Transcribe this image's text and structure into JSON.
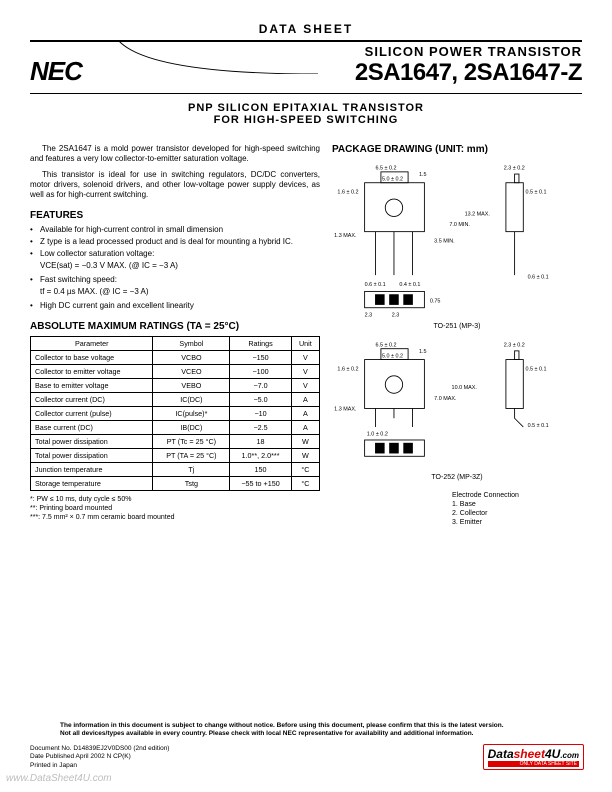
{
  "banner": "DATA  SHEET",
  "logo": "NEC",
  "title_line1": "SILICON  POWER  TRANSISTOR",
  "title_parts": "2SA1647, 2SA1647-Z",
  "subtitle1": "PNP  SILICON  EPITAXIAL  TRANSISTOR",
  "subtitle2": "FOR  HIGH-SPEED  SWITCHING",
  "intro_p1": "The 2SA1647 is a mold power transistor developed for high-speed switching and features a very low collector-to-emitter saturation voltage.",
  "intro_p2": "This transistor is ideal for use in switching regulators, DC/DC converters, motor drivers, solenoid drivers, and other low-voltage power supply devices, as well as for high-current switching.",
  "features_h": "FEATURES",
  "features": {
    "f1": "Available for high-current control in small dimension",
    "f2": "Z type is a lead processed product and is deal for mounting a hybrid IC.",
    "f3": "Low collector saturation voltage:",
    "f3_sub": "VCE(sat) = −0.3 V MAX. (@ IC = −3 A)",
    "f4": "Fast switching speed:",
    "f4_sub": "tf = 0.4 µs MAX. (@ IC = −3 A)",
    "f5": "High DC current gain and excellent linearity"
  },
  "ratings_h": "ABSOLUTE  MAXIMUM  RATINGS  (TA  =  25°C)",
  "tbl": {
    "headers": [
      "Parameter",
      "Symbol",
      "Ratings",
      "Unit"
    ],
    "rows": [
      [
        "Collector to base voltage",
        "VCBO",
        "−150",
        "V"
      ],
      [
        "Collector to emitter voltage",
        "VCEO",
        "−100",
        "V"
      ],
      [
        "Base to emitter voltage",
        "VEBO",
        "−7.0",
        "V"
      ],
      [
        "Collector current (DC)",
        "IC(DC)",
        "−5.0",
        "A"
      ],
      [
        "Collector current (pulse)",
        "IC(pulse)*",
        "−10",
        "A"
      ],
      [
        "Base current (DC)",
        "IB(DC)",
        "−2.5",
        "A"
      ],
      [
        "Total power dissipation",
        "PT (Tc = 25 °C)",
        "18",
        "W"
      ],
      [
        "Total power dissipation",
        "PT (TA = 25 °C)",
        "1.0**, 2.0***",
        "W"
      ],
      [
        "Junction temperature",
        "Tj",
        "150",
        "°C"
      ],
      [
        "Storage temperature",
        "Tstg",
        "−55 to +150",
        "°C"
      ]
    ]
  },
  "notes": {
    "n1": "*:    PW ≤ 10 ms, duty cycle ≤ 50%",
    "n2": "**:   Printing board mounted",
    "n3": "***: 7.5 mm² × 0.7 mm ceramic board mounted"
  },
  "pkg_h": "PACKAGE  DRAWING  (UNIT: mm)",
  "pkg_labels": {
    "p1": "TO-251  (MP-3)",
    "p2": "TO-252  (MP-3Z)"
  },
  "pkg_dims": {
    "d1": "6.5 ± 0.2",
    "d2": "5.0 ± 0.2",
    "d3": "1.5",
    "d4": "2.3 ± 0.2",
    "d5": "1.6 ± 0.2",
    "d6": "1.3 MAX.",
    "d7": "0.5 ± 0.1",
    "d8": "3.5 MIN.",
    "d9": "7.0 MIN.",
    "d10": "13.2 MAX.",
    "d11": "0.6 ± 0.1",
    "d12": "0.4 ± 0.1",
    "d13": "0.6 ± 0.1",
    "d14": "2.3",
    "d15": "2.3",
    "d16": "0.75",
    "d17": "6.5 ± 0.2",
    "d18": "5.0 ± 0.2",
    "d19": "1.5",
    "d20": "2.3 ± 0.2",
    "d21": "1.6 ± 0.2",
    "d22": "1.3 MAX.",
    "d23": "0.5 ± 0.1",
    "d24": "7.0 MAX.",
    "d25": "10.0 MAX.",
    "d26": "1.0 ± 0.2",
    "d27": "0.5 ± 0.1"
  },
  "elec_h": "Electrode Connection",
  "elec": {
    "e1": "1. Base",
    "e2": "2. Collector",
    "e3": "3. Emitter"
  },
  "disclaimer": "The information in this document is subject to change without notice. Before using this document, please confirm that this is the latest version.\nNot all devices/types available in every country. Please check with local NEC representative for availability and additional information.",
  "docmeta": {
    "m1": "Document No.  D14839EJ2V0DS00 (2nd edition)",
    "m2": "Date Published  April  2002 N  CP(K)",
    "m3": "Printed in Japan"
  },
  "ds4u_main1": "Data",
  "ds4u_main2": "sheet",
  "ds4u_main3": "4U",
  "ds4u_main4": ".com",
  "ds4u_sub": "ONLY DATA SHEET SITE",
  "wwwds4u": "www.DataSheet4U.com",
  "colors": {
    "rule": "#000000",
    "red": "#d00000",
    "grey": "#bdbdbd"
  }
}
